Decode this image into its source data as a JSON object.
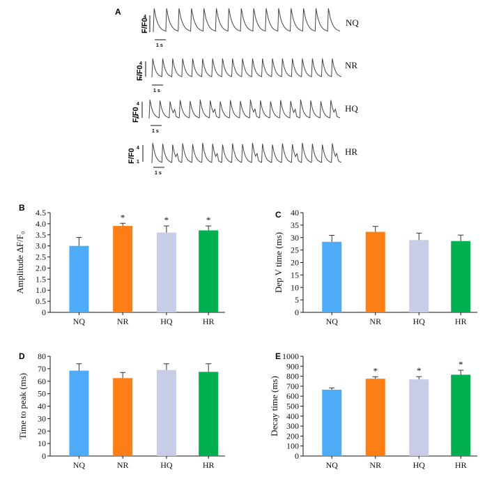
{
  "traces": {
    "panel_label": "A",
    "ylabel": "F/F0",
    "tick_top": "4",
    "tick_bottom": "1",
    "scale_label": "1 s",
    "rows": [
      {
        "label": "NQ"
      },
      {
        "label": "NR"
      },
      {
        "label": "HQ"
      },
      {
        "label": "HR"
      }
    ]
  },
  "chart_data": [
    {
      "panel": "B",
      "type": "bar",
      "categories": [
        "NQ",
        "NR",
        "HQ",
        "HR"
      ],
      "values": [
        3.0,
        3.9,
        3.6,
        3.7
      ],
      "errors": [
        0.38,
        0.12,
        0.3,
        0.2
      ],
      "significance": [
        "",
        "*",
        "*",
        "*"
      ],
      "colors": [
        "#4dabf7",
        "#fd7e14",
        "#c8cce6",
        "#00b050"
      ],
      "ylabel": "Amplitude ΔF/F₀",
      "ylim": [
        0,
        4.5
      ],
      "yticks": [
        "0",
        "0.5",
        "1.0",
        "1.5",
        "2.0",
        "2.5",
        "3.0",
        "3.5",
        "4.0",
        "4.5"
      ]
    },
    {
      "panel": "C",
      "type": "bar",
      "categories": [
        "NQ",
        "NR",
        "HQ",
        "HR"
      ],
      "values": [
        28.3,
        32.3,
        29.0,
        28.6
      ],
      "errors": [
        2.6,
        2.2,
        2.8,
        2.4
      ],
      "significance": [
        "",
        "",
        "",
        ""
      ],
      "colors": [
        "#4dabf7",
        "#fd7e14",
        "#c8cce6",
        "#00b050"
      ],
      "ylabel": "Dep V time (ms)",
      "ylim": [
        0,
        40
      ],
      "yticks": [
        "0",
        "5",
        "10",
        "15",
        "20",
        "25",
        "30",
        "35",
        "40"
      ]
    },
    {
      "panel": "D",
      "type": "bar",
      "categories": [
        "NQ",
        "NR",
        "HQ",
        "HR"
      ],
      "values": [
        68.5,
        62.5,
        69.0,
        67.5
      ],
      "errors": [
        5.5,
        4.5,
        5.0,
        6.5
      ],
      "significance": [
        "",
        "",
        "",
        ""
      ],
      "colors": [
        "#4dabf7",
        "#fd7e14",
        "#c8cce6",
        "#00b050"
      ],
      "ylabel": "Time to peak (ms)",
      "ylim": [
        0,
        80
      ],
      "yticks": [
        "0",
        "10",
        "20",
        "30",
        "40",
        "50",
        "60",
        "70",
        "80"
      ]
    },
    {
      "panel": "E",
      "type": "bar",
      "categories": [
        "NQ",
        "NR",
        "HQ",
        "HR"
      ],
      "values": [
        665,
        775,
        768,
        815
      ],
      "errors": [
        18,
        20,
        28,
        45
      ],
      "significance": [
        "",
        "*",
        "*",
        "*"
      ],
      "colors": [
        "#4dabf7",
        "#fd7e14",
        "#c8cce6",
        "#00b050"
      ],
      "ylabel": "Decay time (ms)",
      "ylim": [
        0,
        1000
      ],
      "yticks": [
        "0",
        "100",
        "200",
        "300",
        "400",
        "500",
        "600",
        "700",
        "800",
        "900",
        "1000"
      ]
    }
  ]
}
